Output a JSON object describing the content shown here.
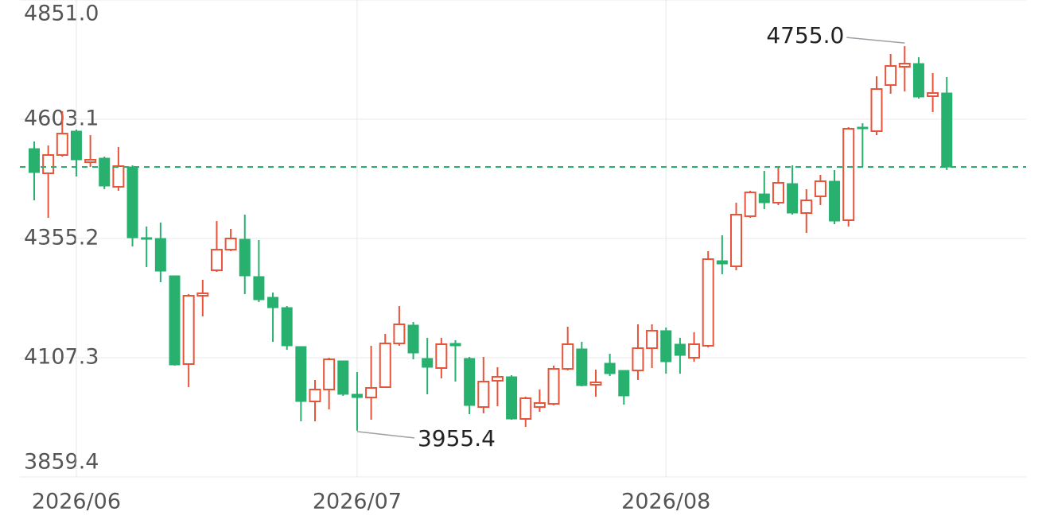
{
  "chart_data": {
    "type": "candlestick",
    "categories": [
      null,
      null,
      null,
      "2026/06",
      null,
      null,
      null,
      null,
      null,
      null,
      null,
      null,
      null,
      null,
      null,
      null,
      null,
      null,
      null,
      null,
      null,
      null,
      null,
      "2026/07",
      null,
      null,
      null,
      null,
      null,
      null,
      null,
      null,
      null,
      null,
      null,
      null,
      null,
      null,
      null,
      null,
      null,
      null,
      null,
      null,
      null,
      "2026/08",
      null,
      null,
      null,
      null,
      null,
      null,
      null,
      null,
      null,
      null,
      null,
      null,
      null,
      null,
      null,
      null,
      null,
      null,
      null,
      null
    ],
    "open": [
      4541.9,
      4490.7,
      4528.7,
      4578.3,
      4513.8,
      4522.1,
      4462.6,
      4503.9,
      4356.8,
      4355.2,
      4277.5,
      4094.1,
      4236.2,
      4289.1,
      4332.0,
      4353.5,
      4275.9,
      4232.9,
      4211.4,
      4130.4,
      4016.4,
      4041.2,
      4100.7,
      4031.3,
      4024.6,
      4046.1,
      4137.0,
      4175.0,
      4105.6,
      4085.8,
      4137.0,
      4105.6,
      4004.8,
      4059.4,
      4067.6,
      3980.0,
      4004.8,
      4011.4,
      4084.1,
      4125.5,
      4051.1,
      4095.7,
      4080.8,
      4080.8,
      4127.1,
      4163.5,
      4135.4,
      4107.3,
      4132.1,
      4308.9,
      4297.3,
      4401.5,
      4447.7,
      4429.6,
      4469.2,
      4408.1,
      4442.8,
      4474.2,
      4393.2,
      4586.6,
      4578.3,
      4674.2,
      4712.2,
      4718.8,
      4651.0,
      4657.6
    ],
    "high": [
      4556.8,
      4548.6,
      4619.6,
      4581.6,
      4570.0,
      4525.4,
      4545.3,
      4507.2,
      4380.0,
      4388.2,
      4277.5,
      4239.5,
      4269.2,
      4391.5,
      4375.0,
      4404.8,
      4351.9,
      4242.8,
      4214.7,
      4130.4,
      4061.0,
      4107.3,
      4100.7,
      4077.5,
      4132.1,
      4156.9,
      4214.7,
      4181.7,
      4148.6,
      4148.6,
      4143.6,
      4108.9,
      4108.9,
      4087.5,
      4070.9,
      4026.3,
      4041.2,
      4090.8,
      4171.7,
      4140.3,
      4082.5,
      4115.5,
      4080.8,
      4176.7,
      4176.7,
      4170.1,
      4148.6,
      4160.2,
      4328.7,
      4361.8,
      4429.6,
      4454.4,
      4495.7,
      4503.9,
      4507.2,
      4457.7,
      4487.4,
      4497.3,
      4586.6,
      4594.8,
      4692.3,
      4738.6,
      4755.0,
      4732.0,
      4699.0,
      4690.7
    ],
    "low": [
      4434.5,
      4398.2,
      4525.4,
      4484.1,
      4503.9,
      4457.7,
      4454.4,
      4338.7,
      4295.7,
      4264.3,
      4090.8,
      4046.1,
      4193.2,
      4285.8,
      4328.7,
      4239.5,
      4223.0,
      4140.3,
      4123.8,
      3975.1,
      3975.1,
      3999.9,
      4028.0,
      3955.4,
      3978.4,
      4044.5,
      4132.1,
      4104.0,
      4031.3,
      4064.3,
      4057.7,
      3989.9,
      3991.6,
      4006.5,
      3978.4,
      3963.5,
      3994.9,
      4008.1,
      4080.8,
      4047.8,
      4026.3,
      4069.3,
      4009.8,
      4061.0,
      4085.8,
      4074.2,
      4074.2,
      4099.0,
      4128.8,
      4280.8,
      4289.1,
      4398.2,
      4416.3,
      4424.6,
      4404.8,
      4366.8,
      4424.6,
      4384.9,
      4380.0,
      4503.9,
      4570.0,
      4656.0,
      4660.9,
      4646.1,
      4618.0,
      4497.3
    ],
    "close": [
      4492.4,
      4528.7,
      4573.3,
      4518.8,
      4518.8,
      4464.3,
      4505.6,
      4356.8,
      4353.5,
      4287.4,
      4092.4,
      4236.2,
      4241.2,
      4332.0,
      4355.2,
      4277.5,
      4227.9,
      4211.4,
      4132.1,
      4016.4,
      4041.2,
      4104.0,
      4031.3,
      4024.6,
      4044.5,
      4137.0,
      4176.7,
      4117.2,
      4087.5,
      4135.4,
      4132.1,
      4008.1,
      4057.7,
      4067.6,
      3980.0,
      4023.0,
      4013.1,
      4084.1,
      4135.4,
      4049.4,
      4056.0,
      4074.2,
      4028.0,
      4127.1,
      4163.5,
      4099.0,
      4112.2,
      4135.4,
      4312.2,
      4302.3,
      4404.8,
      4451.0,
      4429.6,
      4470.9,
      4408.1,
      4434.5,
      4474.2,
      4391.5,
      4583.3,
      4583.3,
      4665.9,
      4713.8,
      4718.8,
      4649.4,
      4657.6,
      4503.9
    ],
    "up_color": "#e8543a",
    "down_color": "#27b06e",
    "ylim": [
      3859.4,
      4851.0
    ],
    "yticks": [
      3859.4,
      4107.3,
      4355.2,
      4603.1,
      {
        "value": 4851.0,
        "label": "4851.0"
      }
    ],
    "grid": true,
    "last_price_line": true,
    "annotations": [
      {
        "value": 4755.0,
        "label": "4755.0"
      },
      {
        "value": 3955.4,
        "label": "3955.4"
      }
    ]
  }
}
